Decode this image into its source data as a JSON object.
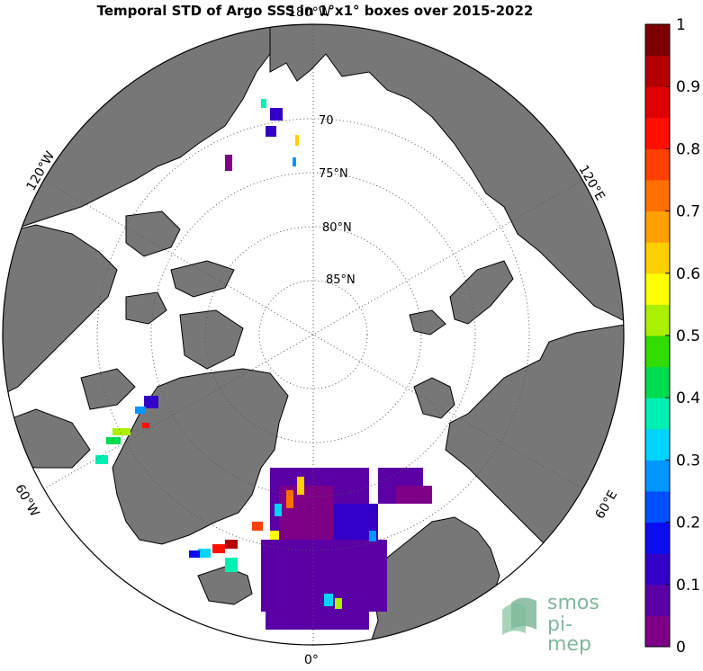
{
  "title": "Temporal STD of Argo SSS in 1°x1° boxes over 2015-2022",
  "map": {
    "projection": "north polar stereographic",
    "latitude_labels": [
      "70",
      "75°N",
      "80°N",
      "85°N"
    ],
    "longitude_labels": [
      "180°W",
      "120°W",
      "60°W",
      "0°",
      "60°E",
      "120°E"
    ],
    "land_color": "#777777",
    "ocean_color": "#ffffff"
  },
  "colorbar": {
    "ticks": [
      "0",
      "0.1",
      "0.2",
      "0.3",
      "0.4",
      "0.5",
      "0.6",
      "0.7",
      "0.8",
      "0.9",
      "1"
    ],
    "range": [
      0,
      1
    ],
    "colormap": [
      "#7d0087",
      "#5a00a5",
      "#3300c8",
      "#0c0cf0",
      "#0050ff",
      "#0096ff",
      "#00d4ff",
      "#00f0b4",
      "#00dc50",
      "#32dc00",
      "#aaf000",
      "#ffff00",
      "#ffd000",
      "#ffa000",
      "#ff7000",
      "#ff4000",
      "#ff1000",
      "#e00000",
      "#b40000",
      "#7d0000"
    ]
  },
  "logo": {
    "line1": "smos",
    "line2": "pi-mep"
  }
}
